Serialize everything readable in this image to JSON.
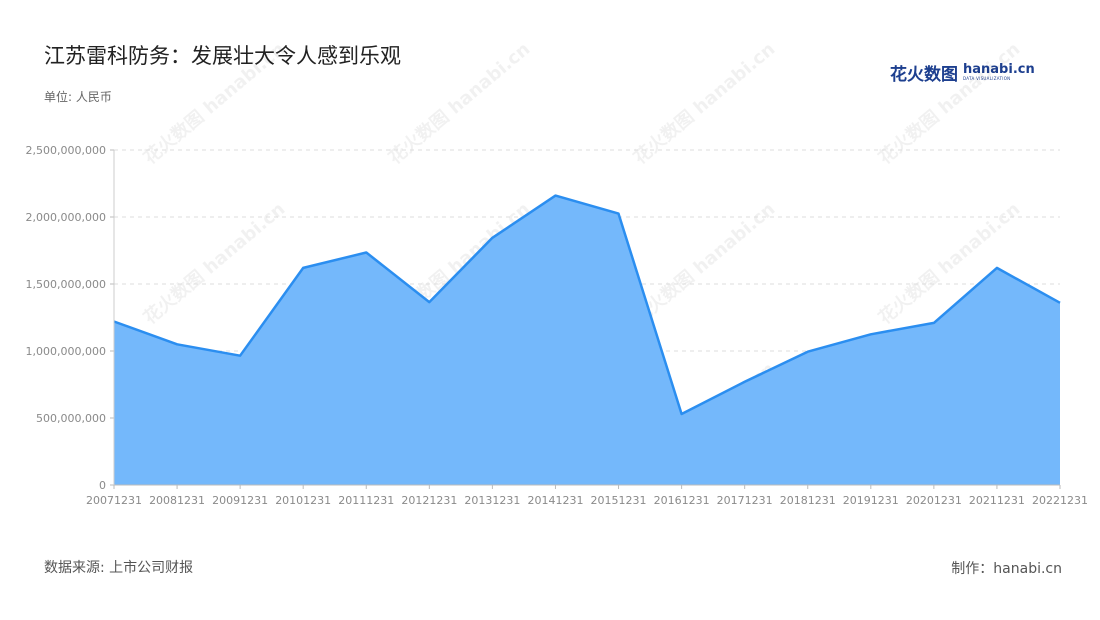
{
  "title": "江苏雷科防务：发展壮大令人感到乐观",
  "unit_label": "单位: 人民币",
  "source_label": "数据来源: 上市公司财报",
  "credit_label": "制作：hanabi.cn",
  "logo": {
    "cn": "花火数图",
    "en": "hanabi.cn",
    "sub": "DATA VISUALIZATION"
  },
  "watermark": "花火数图 hanabi.cn",
  "colors": {
    "line": "#2b8ef0",
    "fill": "#74b8fb",
    "grid": "#dddddd"
  },
  "chart_data": {
    "type": "area",
    "x": [
      "20071231",
      "20081231",
      "20091231",
      "20101231",
      "20111231",
      "20121231",
      "20131231",
      "20141231",
      "20151231",
      "20161231",
      "20171231",
      "20181231",
      "20191231",
      "20201231",
      "20211231",
      "20221231"
    ],
    "series": [
      {
        "values": [
          1220000000,
          1050000000,
          965000000,
          1620000000,
          1735000000,
          1365000000,
          1845000000,
          2160000000,
          2025000000,
          530000000,
          770000000,
          995000000,
          1125000000,
          1210000000,
          1620000000,
          1360000000
        ]
      }
    ],
    "ylim": [
      0,
      2500000000
    ],
    "yticks": [
      0,
      500000000,
      1000000000,
      1500000000,
      2000000000,
      2500000000
    ],
    "ytick_labels": [
      "0",
      "500,000,000",
      "1,000,000,000",
      "1,500,000,000",
      "2,000,000,000",
      "2,500,000,000"
    ],
    "grid": true
  }
}
